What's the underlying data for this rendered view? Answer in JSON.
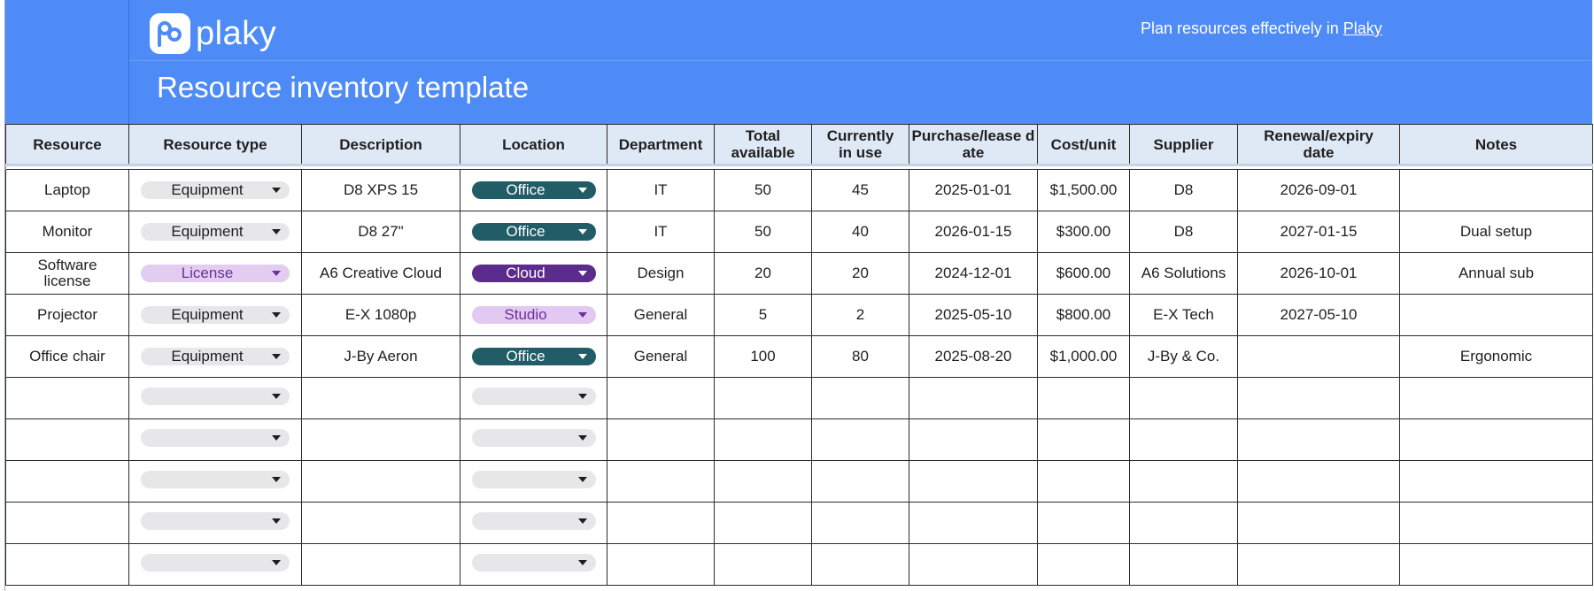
{
  "brand": {
    "logo_text": "plaky",
    "promo_text": "Plan resources effectively in ",
    "promo_link": "Plaky"
  },
  "title": "Resource inventory template",
  "columns": [
    "Resource",
    "Resource type",
    "Description",
    "Location",
    "Department",
    "Total available",
    "Currently in use",
    "Purchase/lease date",
    "Cost/unit",
    "Supplier",
    "Renewal/expiry date",
    "Notes"
  ],
  "rows": [
    {
      "resource": "Laptop",
      "type": "Equipment",
      "description": "D8 XPS 15",
      "location": "Office",
      "department": "IT",
      "total": "50",
      "in_use": "45",
      "purchase": "2025-01-01",
      "cost": "$1,500.00",
      "supplier": "D8",
      "renewal": "2026-09-01",
      "notes": ""
    },
    {
      "resource": "Monitor",
      "type": "Equipment",
      "description": "D8 27\"",
      "location": "Office",
      "department": "IT",
      "total": "50",
      "in_use": "40",
      "purchase": "2026-01-15",
      "cost": "$300.00",
      "supplier": "D8",
      "renewal": "2027-01-15",
      "notes": "Dual setup"
    },
    {
      "resource": "Software license",
      "type": "License",
      "description": "A6 Creative Cloud",
      "location": "Cloud",
      "department": "Design",
      "total": "20",
      "in_use": "20",
      "purchase": "2024-12-01",
      "cost": "$600.00",
      "supplier": "A6 Solutions",
      "renewal": "2026-10-01",
      "notes": "Annual sub"
    },
    {
      "resource": "Projector",
      "type": "Equipment",
      "description": "E-X 1080p",
      "location": "Studio",
      "department": "General",
      "total": "5",
      "in_use": "2",
      "purchase": "2025-05-10",
      "cost": "$800.00",
      "supplier": "E-X Tech",
      "renewal": "2027-05-10",
      "notes": ""
    },
    {
      "resource": "Office chair",
      "type": "Equipment",
      "description": "J-By Aeron",
      "location": "Office",
      "department": "General",
      "total": "100",
      "in_use": "80",
      "purchase": "2025-08-20",
      "cost": "$1,000.00",
      "supplier": "J-By & Co.",
      "renewal": "",
      "notes": "Ergonomic"
    }
  ],
  "empty_rows": 5,
  "colors": {
    "banner": "#4f8bf7",
    "header_bg": "#dfe8f5",
    "office": "#215c67",
    "cloud": "#5b2b8e",
    "studio": "#e2c9f1",
    "license": "#e2cdf0",
    "equipment": "#e7e7ea"
  }
}
